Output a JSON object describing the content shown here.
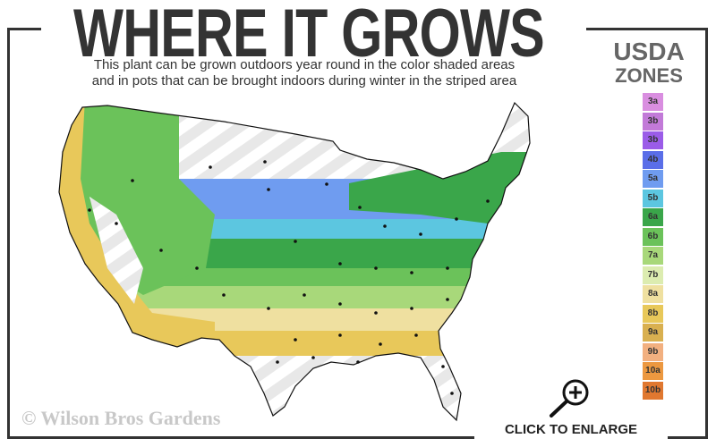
{
  "header": {
    "title": "WHERE IT GROWS",
    "subtitle_line1": "This plant can be grown outdoors year round in the color shaded areas",
    "subtitle_line2": "and in pots that can be brought indoors during winter in the striped area"
  },
  "legend": {
    "title_line1": "USDA",
    "title_line2": "ZONES",
    "zones": [
      {
        "label": "3a",
        "color": "#d98ee0"
      },
      {
        "label": "3b",
        "color": "#c27ad8"
      },
      {
        "label": "3b",
        "color": "#9b5ce8"
      },
      {
        "label": "4b",
        "color": "#5a6ee8"
      },
      {
        "label": "5a",
        "color": "#6f9cf0"
      },
      {
        "label": "5b",
        "color": "#5cc6e0"
      },
      {
        "label": "6a",
        "color": "#3aa64a"
      },
      {
        "label": "6b",
        "color": "#6bc25a"
      },
      {
        "label": "7a",
        "color": "#a8d87a"
      },
      {
        "label": "7b",
        "color": "#dcecb0"
      },
      {
        "label": "8a",
        "color": "#efe0a0"
      },
      {
        "label": "8b",
        "color": "#e8c85a"
      },
      {
        "label": "9a",
        "color": "#d9b050"
      },
      {
        "label": "9b",
        "color": "#f2b080"
      },
      {
        "label": "10a",
        "color": "#ec9840"
      },
      {
        "label": "10b",
        "color": "#e07830"
      }
    ]
  },
  "footer": {
    "watermark": "© Wilson Bros Gardens",
    "enlarge_label": "CLICK TO ENLARGE",
    "enlarge_icon": "zoom-in-magnifier-icon"
  }
}
